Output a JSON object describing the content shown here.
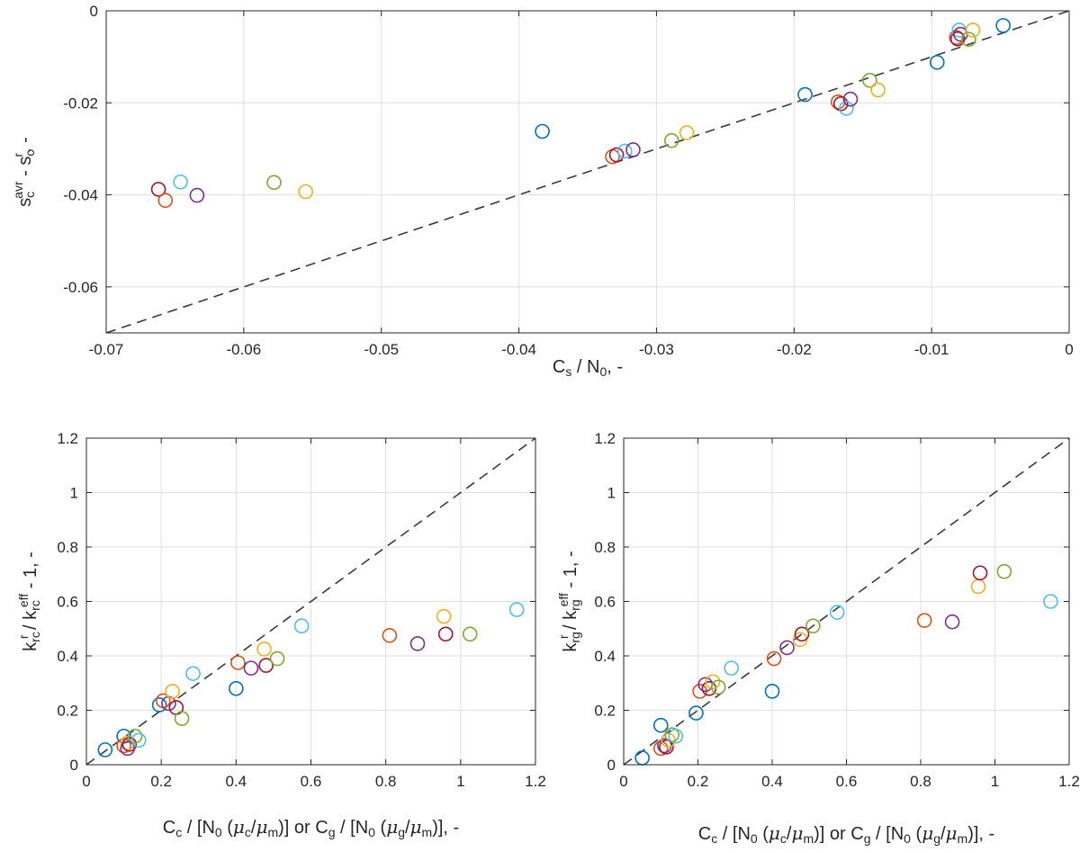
{
  "palette": {
    "blue": "#0072BD",
    "orange": "#D95319",
    "yellow": "#EDB120",
    "purple": "#7E2F8E",
    "green": "#77AC30",
    "cyan": "#4DBEEE",
    "red": "#A2142F"
  },
  "chart_data": [
    {
      "type": "scatter",
      "title": "",
      "xlabel_parts": [
        [
          "C",
          ""
        ],
        [
          "s",
          "sub"
        ],
        [
          " / N",
          ""
        ],
        [
          "0",
          "sub"
        ],
        [
          ", -",
          ""
        ]
      ],
      "ylabel_parts": [
        [
          "s",
          ""
        ],
        [
          "c",
          "sub"
        ],
        [
          "avr",
          "sup"
        ],
        [
          " - s",
          ""
        ],
        [
          "c",
          "sub"
        ],
        [
          "r",
          "sup"
        ],
        [
          ", -",
          ""
        ]
      ],
      "xlim": [
        -0.07,
        0
      ],
      "ylim": [
        -0.07,
        0
      ],
      "xticks": [
        -0.07,
        -0.06,
        -0.05,
        -0.04,
        -0.03,
        -0.02,
        -0.01,
        0
      ],
      "xtick_labels": [
        "-0.07",
        "-0.06",
        "-0.05",
        "-0.04",
        "-0.03",
        "-0.02",
        "-0.01",
        "0"
      ],
      "yticks": [
        -0.06,
        -0.04,
        -0.02,
        0
      ],
      "ytick_labels": [
        "-0.06",
        "-0.04",
        "-0.02",
        "0"
      ],
      "grid": true,
      "reference_line": "y = x",
      "points": [
        {
          "x": -0.0662,
          "y": -0.0388,
          "color": "red"
        },
        {
          "x": -0.0657,
          "y": -0.0412,
          "color": "orange"
        },
        {
          "x": -0.0646,
          "y": -0.0372,
          "color": "cyan"
        },
        {
          "x": -0.0634,
          "y": -0.0401,
          "color": "purple"
        },
        {
          "x": -0.0578,
          "y": -0.0373,
          "color": "green"
        },
        {
          "x": -0.0555,
          "y": -0.0393,
          "color": "yellow"
        },
        {
          "x": -0.0383,
          "y": -0.0262,
          "color": "blue"
        },
        {
          "x": -0.0332,
          "y": -0.0317,
          "color": "orange"
        },
        {
          "x": -0.0329,
          "y": -0.0313,
          "color": "red"
        },
        {
          "x": -0.0323,
          "y": -0.0305,
          "color": "cyan"
        },
        {
          "x": -0.0317,
          "y": -0.0302,
          "color": "purple"
        },
        {
          "x": -0.0289,
          "y": -0.0282,
          "color": "green"
        },
        {
          "x": -0.0278,
          "y": -0.0265,
          "color": "yellow"
        },
        {
          "x": -0.0192,
          "y": -0.0182,
          "color": "blue"
        },
        {
          "x": -0.0168,
          "y": -0.0198,
          "color": "orange"
        },
        {
          "x": -0.0166,
          "y": -0.0202,
          "color": "red"
        },
        {
          "x": -0.0162,
          "y": -0.0212,
          "color": "cyan"
        },
        {
          "x": -0.0159,
          "y": -0.0192,
          "color": "purple"
        },
        {
          "x": -0.0145,
          "y": -0.0151,
          "color": "green"
        },
        {
          "x": -0.0139,
          "y": -0.0172,
          "color": "yellow"
        },
        {
          "x": -0.0096,
          "y": -0.0112,
          "color": "blue"
        },
        {
          "x": -0.0082,
          "y": -0.0058,
          "color": "orange"
        },
        {
          "x": -0.0081,
          "y": -0.0061,
          "color": "red"
        },
        {
          "x": -0.008,
          "y": -0.0042,
          "color": "cyan"
        },
        {
          "x": -0.0079,
          "y": -0.0051,
          "color": "purple"
        },
        {
          "x": -0.0073,
          "y": -0.0062,
          "color": "green"
        },
        {
          "x": -0.007,
          "y": -0.0042,
          "color": "yellow"
        },
        {
          "x": -0.0048,
          "y": -0.0032,
          "color": "blue"
        }
      ]
    },
    {
      "type": "scatter",
      "title": "",
      "xlabel_parts": [
        [
          "C",
          ""
        ],
        [
          "c",
          "sub"
        ],
        [
          " / [N",
          ""
        ],
        [
          "0",
          "sub"
        ],
        [
          " (",
          ""
        ],
        [
          "μ",
          "ital"
        ],
        [
          "c",
          "sub"
        ],
        [
          "/",
          ""
        ],
        [
          "μ",
          "ital"
        ],
        [
          "m",
          "sub"
        ],
        [
          ")] or C",
          ""
        ],
        [
          "g",
          "sub"
        ],
        [
          " / [N",
          ""
        ],
        [
          "0",
          "sub"
        ],
        [
          " (",
          ""
        ],
        [
          "μ",
          "ital"
        ],
        [
          "g",
          "sub"
        ],
        [
          "/",
          ""
        ],
        [
          "μ",
          "ital"
        ],
        [
          "m",
          "sub"
        ],
        [
          ")], -",
          ""
        ]
      ],
      "ylabel_parts": [
        [
          "k",
          ""
        ],
        [
          "rc",
          "sub"
        ],
        [
          "r",
          "sup"
        ],
        [
          " / k",
          ""
        ],
        [
          "rc",
          "sub"
        ],
        [
          "eff",
          "sup"
        ],
        [
          " - 1, -",
          ""
        ]
      ],
      "xlim": [
        0,
        1.2
      ],
      "ylim": [
        0,
        1.2
      ],
      "xticks": [
        0,
        0.2,
        0.4,
        0.6,
        0.8,
        1,
        1.2
      ],
      "xtick_labels": [
        "0",
        "0.2",
        "0.4",
        "0.6",
        "0.8",
        "1",
        "1.2"
      ],
      "yticks": [
        0,
        0.2,
        0.4,
        0.6,
        0.8,
        1,
        1.2
      ],
      "ytick_labels": [
        "0",
        "0.2",
        "0.4",
        "0.6",
        "0.8",
        "1",
        "1.2"
      ],
      "grid": true,
      "reference_line": "y = x",
      "points": [
        {
          "x": 0.05,
          "y": 0.055,
          "color": "blue"
        },
        {
          "x": 0.1,
          "y": 0.105,
          "color": "blue"
        },
        {
          "x": 0.1,
          "y": 0.07,
          "color": "orange"
        },
        {
          "x": 0.11,
          "y": 0.08,
          "color": "yellow"
        },
        {
          "x": 0.11,
          "y": 0.06,
          "color": "purple"
        },
        {
          "x": 0.115,
          "y": 0.075,
          "color": "red"
        },
        {
          "x": 0.13,
          "y": 0.105,
          "color": "green"
        },
        {
          "x": 0.14,
          "y": 0.09,
          "color": "cyan"
        },
        {
          "x": 0.195,
          "y": 0.22,
          "color": "blue"
        },
        {
          "x": 0.205,
          "y": 0.235,
          "color": "orange"
        },
        {
          "x": 0.22,
          "y": 0.225,
          "color": "purple"
        },
        {
          "x": 0.23,
          "y": 0.27,
          "color": "yellow"
        },
        {
          "x": 0.24,
          "y": 0.21,
          "color": "red"
        },
        {
          "x": 0.255,
          "y": 0.17,
          "color": "green"
        },
        {
          "x": 0.285,
          "y": 0.335,
          "color": "cyan"
        },
        {
          "x": 0.4,
          "y": 0.28,
          "color": "blue"
        },
        {
          "x": 0.405,
          "y": 0.375,
          "color": "orange"
        },
        {
          "x": 0.44,
          "y": 0.355,
          "color": "purple"
        },
        {
          "x": 0.475,
          "y": 0.425,
          "color": "yellow"
        },
        {
          "x": 0.48,
          "y": 0.365,
          "color": "red"
        },
        {
          "x": 0.51,
          "y": 0.39,
          "color": "green"
        },
        {
          "x": 0.575,
          "y": 0.51,
          "color": "cyan"
        },
        {
          "x": 0.81,
          "y": 0.475,
          "color": "orange"
        },
        {
          "x": 0.885,
          "y": 0.445,
          "color": "purple"
        },
        {
          "x": 0.955,
          "y": 0.545,
          "color": "yellow"
        },
        {
          "x": 0.96,
          "y": 0.48,
          "color": "red"
        },
        {
          "x": 1.025,
          "y": 0.48,
          "color": "green"
        },
        {
          "x": 1.15,
          "y": 0.57,
          "color": "cyan"
        }
      ]
    },
    {
      "type": "scatter",
      "title": "",
      "xlabel_parts": [
        [
          "C",
          ""
        ],
        [
          "c",
          "sub"
        ],
        [
          " / [N",
          ""
        ],
        [
          "0",
          "sub"
        ],
        [
          " (",
          ""
        ],
        [
          "μ",
          "ital"
        ],
        [
          "c",
          "sub"
        ],
        [
          "/",
          ""
        ],
        [
          "μ",
          "ital"
        ],
        [
          "m",
          "sub"
        ],
        [
          ")] or C",
          ""
        ],
        [
          "g",
          "sub"
        ],
        [
          " / [N",
          ""
        ],
        [
          "0",
          "sub"
        ],
        [
          " (",
          ""
        ],
        [
          "μ",
          "ital"
        ],
        [
          "g",
          "sub"
        ],
        [
          "/",
          ""
        ],
        [
          "μ",
          "ital"
        ],
        [
          "m",
          "sub"
        ],
        [
          ")], -",
          ""
        ]
      ],
      "ylabel_parts": [
        [
          "k",
          ""
        ],
        [
          "rg",
          "sub"
        ],
        [
          "r",
          "sup"
        ],
        [
          " / k",
          ""
        ],
        [
          "rg",
          "sub"
        ],
        [
          "eff",
          "sup"
        ],
        [
          " - 1, -",
          ""
        ]
      ],
      "xlim": [
        0,
        1.2
      ],
      "ylim": [
        0,
        1.2
      ],
      "xticks": [
        0,
        0.2,
        0.4,
        0.6,
        0.8,
        1,
        1.2
      ],
      "xtick_labels": [
        "0",
        "0.2",
        "0.4",
        "0.6",
        "0.8",
        "1",
        "1.2"
      ],
      "yticks": [
        0,
        0.2,
        0.4,
        0.6,
        0.8,
        1,
        1.2
      ],
      "ytick_labels": [
        "0",
        "0.2",
        "0.4",
        "0.6",
        "0.8",
        "1",
        "1.2"
      ],
      "grid": true,
      "reference_line": "y = x",
      "points": [
        {
          "x": 0.05,
          "y": 0.025,
          "color": "blue"
        },
        {
          "x": 0.1,
          "y": 0.145,
          "color": "blue"
        },
        {
          "x": 0.1,
          "y": 0.06,
          "color": "orange"
        },
        {
          "x": 0.11,
          "y": 0.07,
          "color": "purple"
        },
        {
          "x": 0.115,
          "y": 0.065,
          "color": "red"
        },
        {
          "x": 0.12,
          "y": 0.09,
          "color": "yellow"
        },
        {
          "x": 0.13,
          "y": 0.11,
          "color": "green"
        },
        {
          "x": 0.14,
          "y": 0.105,
          "color": "cyan"
        },
        {
          "x": 0.195,
          "y": 0.19,
          "color": "blue"
        },
        {
          "x": 0.205,
          "y": 0.27,
          "color": "orange"
        },
        {
          "x": 0.22,
          "y": 0.295,
          "color": "purple"
        },
        {
          "x": 0.23,
          "y": 0.28,
          "color": "red"
        },
        {
          "x": 0.24,
          "y": 0.305,
          "color": "yellow"
        },
        {
          "x": 0.255,
          "y": 0.285,
          "color": "green"
        },
        {
          "x": 0.29,
          "y": 0.355,
          "color": "cyan"
        },
        {
          "x": 0.4,
          "y": 0.27,
          "color": "blue"
        },
        {
          "x": 0.405,
          "y": 0.39,
          "color": "orange"
        },
        {
          "x": 0.44,
          "y": 0.43,
          "color": "purple"
        },
        {
          "x": 0.475,
          "y": 0.46,
          "color": "yellow"
        },
        {
          "x": 0.48,
          "y": 0.48,
          "color": "red"
        },
        {
          "x": 0.51,
          "y": 0.51,
          "color": "green"
        },
        {
          "x": 0.575,
          "y": 0.56,
          "color": "cyan"
        },
        {
          "x": 0.81,
          "y": 0.53,
          "color": "orange"
        },
        {
          "x": 0.885,
          "y": 0.525,
          "color": "purple"
        },
        {
          "x": 0.955,
          "y": 0.655,
          "color": "yellow"
        },
        {
          "x": 0.96,
          "y": 0.705,
          "color": "red"
        },
        {
          "x": 1.025,
          "y": 0.71,
          "color": "green"
        },
        {
          "x": 1.15,
          "y": 0.6,
          "color": "cyan"
        }
      ]
    }
  ]
}
